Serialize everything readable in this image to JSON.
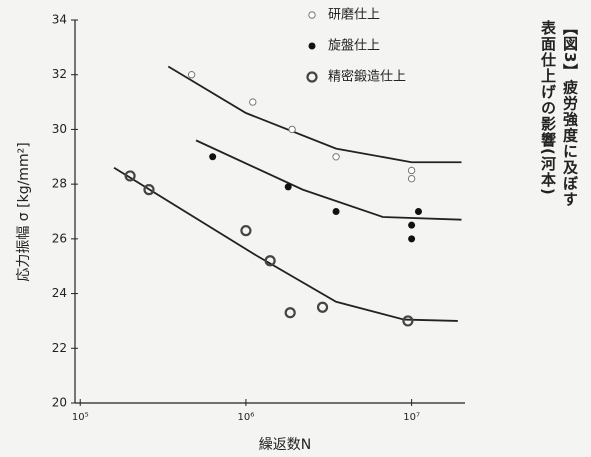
{
  "chart_data": {
    "type": "scatter",
    "ylabel": "応力振幅 σ [kg/mm²]",
    "xlabel": "繰返数N",
    "caption": [
      "【図3】疲労強度に及ぼす",
      "表面仕上げの影響(河本)"
    ],
    "xscale": "log",
    "xlim": [
      93000,
      21000000
    ],
    "ylim": [
      20,
      34
    ],
    "xticks": [
      {
        "value": 100000,
        "label": "10⁵"
      },
      {
        "value": 1000000,
        "label": "10⁶"
      },
      {
        "value": 10000000,
        "label": "10⁷"
      }
    ],
    "yticks": [
      20,
      22,
      24,
      26,
      28,
      30,
      32,
      34
    ],
    "legend": "top",
    "series": [
      {
        "name": "研磨仕上",
        "color": "#777",
        "marker": "open",
        "x": [
          470000,
          1100000,
          1900000,
          3500000,
          10000000,
          10000000
        ],
        "values": [
          32,
          31,
          30,
          29,
          28.5,
          28.2
        ],
        "curve_x": [
          340000,
          1000000,
          3500000,
          10000000,
          20000000
        ],
        "curve_values": [
          32.3,
          30.6,
          29.3,
          28.8,
          28.8
        ]
      },
      {
        "name": "旋盤仕上",
        "color": "#111",
        "marker": "filled",
        "x": [
          630000,
          1800000,
          3500000,
          11000000,
          10000000,
          10000000
        ],
        "values": [
          29,
          27.9,
          27,
          27,
          26.5,
          26
        ],
        "curve_x": [
          500000,
          2200000,
          6700000,
          20000000
        ],
        "curve_values": [
          29.6,
          27.8,
          26.8,
          26.7
        ]
      },
      {
        "name": "精密鍛造仕上",
        "color": "#444",
        "marker": "double",
        "x": [
          200000,
          260000,
          1000000,
          1400000,
          1850000,
          2900000,
          9500000
        ],
        "values": [
          28.3,
          27.8,
          26.3,
          25.2,
          23.3,
          23.5,
          23
        ],
        "curve_x": [
          160000,
          1150000,
          3500000,
          9000000,
          19000000
        ],
        "curve_values": [
          28.6,
          25.4,
          23.7,
          23.05,
          23
        ]
      }
    ]
  }
}
